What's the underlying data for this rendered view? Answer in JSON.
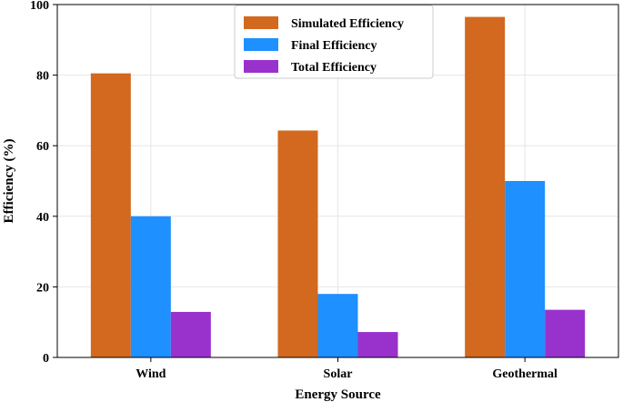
{
  "chart_data": {
    "type": "bar",
    "title": "",
    "xlabel": "Energy Source",
    "ylabel": "Efficiency (%)",
    "categories": [
      "Wind",
      "Solar",
      "Geothermal"
    ],
    "series": [
      {
        "name": "Simulated Efficiency",
        "color": "#d2691e",
        "values": [
          80.5,
          64.3,
          96.5
        ]
      },
      {
        "name": "Final Efficiency",
        "color": "#1e90ff",
        "values": [
          40.0,
          18.0,
          50.0
        ]
      },
      {
        "name": "Total Efficiency",
        "color": "#9932cc",
        "values": [
          12.9,
          7.2,
          13.5
        ]
      }
    ],
    "ylim": [
      0,
      100
    ],
    "yticks": [
      "0",
      "20",
      "40",
      "60",
      "80",
      "100"
    ],
    "grid": true,
    "legend_position": "top-center"
  }
}
